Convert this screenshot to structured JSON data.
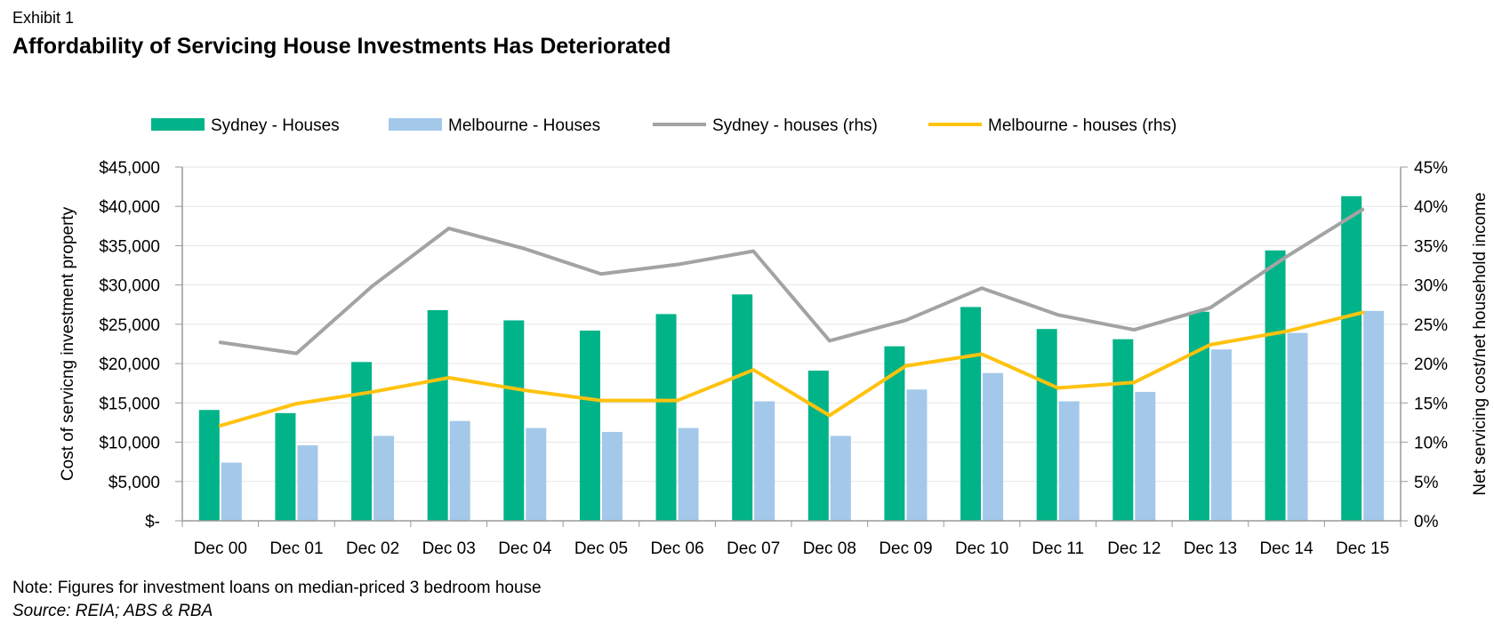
{
  "header": {
    "exhibit": "Exhibit 1",
    "title": "Affordability of Servicing House Investments Has Deteriorated"
  },
  "footer": {
    "note": "Note: Figures for investment loans on median-priced 3 bedroom house",
    "source": "Source: REIA; ABS & RBA"
  },
  "colors": {
    "sydney_bar": "#00B388",
    "melbourne_bar": "#A3C8EA",
    "sydney_line": "#A3A3A3",
    "melbourne_line": "#FFC20E",
    "axis": "#9A9A9A",
    "grid": "#E6E6E6"
  },
  "chart_data": {
    "type": "bar",
    "title": "Affordability of Servicing House Investments Has Deteriorated",
    "categories": [
      "Dec 00",
      "Dec 01",
      "Dec 02",
      "Dec 03",
      "Dec 04",
      "Dec 05",
      "Dec 06",
      "Dec 07",
      "Dec 08",
      "Dec 09",
      "Dec 10",
      "Dec 11",
      "Dec 12",
      "Dec 13",
      "Dec 14",
      "Dec 15"
    ],
    "ylabel": "Cost of servicng  investment property",
    "y2label": "Net servicing cost/net household income",
    "ylim": [
      0,
      45000
    ],
    "y2lim": [
      0,
      45
    ],
    "yticks": [
      0,
      5000,
      10000,
      15000,
      20000,
      25000,
      30000,
      35000,
      40000,
      45000
    ],
    "ytick_labels": [
      "$-",
      "$5,000",
      "$10,000",
      "$15,000",
      "$20,000",
      "$25,000",
      "$30,000",
      "$35,000",
      "$40,000",
      "$45,000"
    ],
    "y2ticks": [
      0,
      5,
      10,
      15,
      20,
      25,
      30,
      35,
      40,
      45
    ],
    "y2tick_labels": [
      "0%",
      "5%",
      "10%",
      "15%",
      "20%",
      "25%",
      "30%",
      "35%",
      "40%",
      "45%"
    ],
    "grid": true,
    "legend_position": "top",
    "series": [
      {
        "name": "Sydney - Houses",
        "kind": "bar",
        "axis": "left",
        "color": "#00B388",
        "values": [
          14100,
          13700,
          20200,
          26800,
          25500,
          24200,
          26300,
          28800,
          19100,
          22200,
          27200,
          24400,
          23100,
          26600,
          34400,
          41300
        ]
      },
      {
        "name": "Melbourne - Houses",
        "kind": "bar",
        "axis": "left",
        "color": "#A3C8EA",
        "values": [
          7400,
          9600,
          10800,
          12700,
          11800,
          11300,
          11800,
          15200,
          10800,
          16700,
          18800,
          15200,
          16400,
          21800,
          23900,
          26700
        ]
      },
      {
        "name": "Sydney - houses (rhs)",
        "kind": "line",
        "axis": "right",
        "color": "#A3A3A3",
        "values": [
          22.7,
          21.3,
          29.9,
          37.2,
          34.6,
          31.4,
          32.6,
          34.3,
          22.9,
          25.5,
          29.6,
          26.2,
          24.3,
          27.1,
          33.6,
          39.6
        ]
      },
      {
        "name": "Melbourne - houses (rhs)",
        "kind": "line",
        "axis": "right",
        "color": "#FFC20E",
        "values": [
          12.1,
          14.9,
          16.4,
          18.2,
          16.6,
          15.3,
          15.3,
          19.2,
          13.4,
          19.7,
          21.2,
          16.9,
          17.6,
          22.4,
          24.1,
          26.5
        ]
      }
    ]
  }
}
